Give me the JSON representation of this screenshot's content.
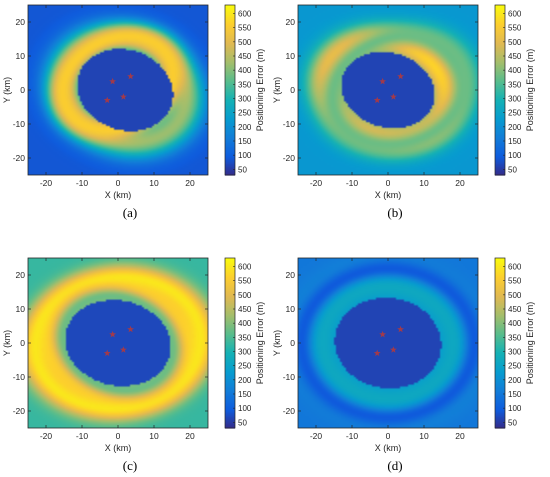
{
  "panels": [
    {
      "caption": "(a)",
      "chart_data": {
        "type": "heatmap",
        "xlabel": "X (km)",
        "ylabel": "Y (km)",
        "colorbar_label": "Positioning Error (m)",
        "xlim": [
          -25,
          25
        ],
        "ylim": [
          -25,
          25
        ],
        "x_ticks": [
          -20,
          -10,
          0,
          10,
          20
        ],
        "y_ticks": [
          -20,
          -10,
          0,
          10,
          20
        ],
        "colorbar_ticks": [
          50,
          100,
          150,
          200,
          250,
          300,
          350,
          400,
          450,
          500,
          550,
          600
        ],
        "clim": [
          30,
          630
        ],
        "colormap": "parula",
        "background_error": 90,
        "inner_error": 65,
        "rings": [
          {
            "cx": 2,
            "cy": 0,
            "rx": 17.5,
            "ry": 15,
            "rot": -25,
            "width": 3.5,
            "error": 420
          },
          {
            "cx": 0,
            "cy": 2,
            "rx": 16,
            "ry": 13,
            "rot": 30,
            "width": 2.5,
            "error": 560
          }
        ],
        "markers": [
          [
            -1.5,
            2.5
          ],
          [
            3.5,
            4
          ],
          [
            -3,
            -3
          ],
          [
            1.5,
            -2
          ]
        ],
        "marker_color": "#a23a4a"
      }
    },
    {
      "caption": "(b)",
      "chart_data": {
        "type": "heatmap",
        "xlabel": "X (km)",
        "ylabel": "Y (km)",
        "colorbar_label": "Positioning Error (m)",
        "xlim": [
          -25,
          25
        ],
        "ylim": [
          -25,
          25
        ],
        "x_ticks": [
          -20,
          -10,
          0,
          10,
          20
        ],
        "y_ticks": [
          -20,
          -10,
          0,
          10,
          20
        ],
        "colorbar_ticks": [
          50,
          100,
          150,
          200,
          250,
          300,
          350,
          400,
          450,
          500,
          550,
          600
        ],
        "clim": [
          30,
          630
        ],
        "colormap": "parula",
        "background_error": 220,
        "inner_error": 65,
        "rings": [
          {
            "cx": 0,
            "cy": 0,
            "rx": 17,
            "ry": 14,
            "rot": -20,
            "width": 3.5,
            "error": 600
          },
          {
            "cx": 3,
            "cy": 0,
            "rx": 19,
            "ry": 15.5,
            "rot": 25,
            "width": 3,
            "error": 380
          }
        ],
        "markers": [
          [
            -1.5,
            2.5
          ],
          [
            3.5,
            4
          ],
          [
            -3,
            -3
          ],
          [
            1.5,
            -2
          ]
        ],
        "marker_color": "#a23a4a"
      }
    },
    {
      "caption": "(c)",
      "chart_data": {
        "type": "heatmap",
        "xlabel": "X (km)",
        "ylabel": "Y (km)",
        "colorbar_label": "Positioning Error (m)",
        "xlim": [
          -25,
          25
        ],
        "ylim": [
          -25,
          25
        ],
        "x_ticks": [
          -20,
          -10,
          0,
          10,
          20
        ],
        "y_ticks": [
          -20,
          -10,
          0,
          10,
          20
        ],
        "colorbar_ticks": [
          50,
          100,
          150,
          200,
          250,
          300,
          350,
          400,
          450,
          500,
          550,
          600
        ],
        "clim": [
          30,
          630
        ],
        "colormap": "parula",
        "background_error": 330,
        "inner_error": 70,
        "rings": [
          {
            "cx": 0,
            "cy": 0,
            "rx": 19,
            "ry": 16,
            "rot": -15,
            "width": 3,
            "error": 560
          },
          {
            "cx": 0,
            "cy": 0,
            "rx": 23,
            "ry": 19,
            "rot": 10,
            "width": 3,
            "error": 600
          },
          {
            "cx": 0,
            "cy": 0,
            "rx": 15.5,
            "ry": 13,
            "rot": -30,
            "width": 2,
            "error": 380
          }
        ],
        "markers": [
          [
            -1.5,
            2.5
          ],
          [
            3.5,
            4
          ],
          [
            -3,
            -3
          ],
          [
            1.5,
            -2
          ]
        ],
        "marker_color": "#a23a4a"
      }
    },
    {
      "caption": "(d)",
      "chart_data": {
        "type": "heatmap",
        "xlabel": "X (km)",
        "ylabel": "Y (km)",
        "colorbar_label": "Positioning Error (m)",
        "xlim": [
          -25,
          25
        ],
        "ylim": [
          -25,
          25
        ],
        "x_ticks": [
          -20,
          -10,
          0,
          10,
          20
        ],
        "y_ticks": [
          -20,
          -10,
          0,
          10,
          20
        ],
        "colorbar_ticks": [
          50,
          100,
          150,
          200,
          250,
          300,
          350,
          400,
          450,
          500,
          550,
          600
        ],
        "clim": [
          30,
          630
        ],
        "colormap": "parula",
        "background_error": 150,
        "inner_error": 65,
        "rings": [
          {
            "cx": 0,
            "cy": 0,
            "rx": 19,
            "ry": 17,
            "rot": -10,
            "width": 5,
            "error": 270
          },
          {
            "cx": 0,
            "cy": 0,
            "rx": 24,
            "ry": 22,
            "rot": 0,
            "width": 2,
            "error": 95
          }
        ],
        "markers": [
          [
            -1.5,
            2.5
          ],
          [
            3.5,
            4
          ],
          [
            -3,
            -3
          ],
          [
            1.5,
            -2
          ]
        ],
        "marker_color": "#a23a4a"
      }
    }
  ]
}
